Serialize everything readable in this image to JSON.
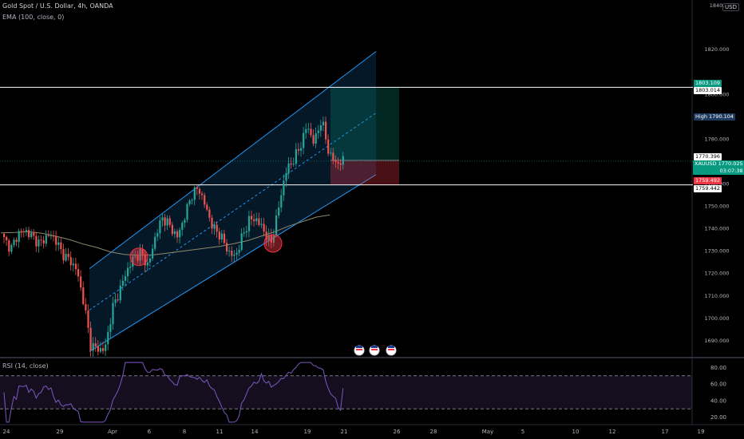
{
  "header": {
    "symbol_line": "Gold Spot / U.S. Dollar, 4h, OANDA",
    "ema_label": "EMA (100, close, 0)",
    "currency": "USD"
  },
  "rsi": {
    "label": "RSI (14, close)",
    "ticks": [
      80.0,
      60.0,
      40.0,
      20.0
    ],
    "band_upper": 70,
    "band_lower": 30,
    "last_value": 55,
    "line_color": "#7e57c2"
  },
  "price_axis": {
    "ticks": [
      "1820.000",
      "1800.000",
      "1780.000",
      "1760.000",
      "1750.000",
      "1740.000",
      "1730.000",
      "1720.000",
      "1710.000",
      "1700.000",
      "1690.000"
    ],
    "top_cut_label": "1840.000",
    "ymin": 1683,
    "ymax": 1842
  },
  "price_tags": {
    "tp": {
      "value": "1803.109",
      "bg": "#089981",
      "fg": "#ffffff"
    },
    "hline_top": {
      "value": "1803.014",
      "bg": "#ffffff",
      "fg": "#000000"
    },
    "high": {
      "label": "High",
      "value": "1790.104",
      "bg": "#1e3a5f",
      "fg": "#ffffff"
    },
    "ref": {
      "value": "1770.396",
      "bg": "#ffffff",
      "fg": "#000000"
    },
    "last": {
      "symbol": "XAUUSD",
      "value": "1770.025",
      "countdown": "03:07:38",
      "bg": "#089981",
      "fg": "#ffffff"
    },
    "sl": {
      "value": "1759.492",
      "bg": "#f23645",
      "fg": "#ffffff"
    },
    "hline_bottom": {
      "value": "1759.442",
      "bg": "#ffffff",
      "fg": "#000000"
    }
  },
  "time_axis": {
    "labels": [
      "24",
      "29",
      "Apr",
      "6",
      "8",
      "11",
      "14",
      "19",
      "21",
      "26",
      "28",
      "May",
      "5",
      "10",
      "12",
      "17",
      "19"
    ]
  },
  "colors": {
    "up": "#26a69a",
    "down": "#ef5350",
    "channel": "#2196f3",
    "ema": "#8f8a6a"
  },
  "chart_data": {
    "type": "candlestick",
    "symbol": "XAUUSD",
    "timeframe": "4h",
    "ylim": [
      1683,
      1842
    ],
    "horizontal_levels": [
      1803.014,
      1759.442
    ],
    "channel": {
      "lower_start": [
        0,
        1685
      ],
      "lower_end": [
        140,
        1764
      ],
      "upper_start": [
        0,
        1722
      ],
      "upper_end": [
        140,
        1819
      ]
    },
    "position": {
      "entry": 1770.396,
      "take_profit": 1803.109,
      "stop_loss": 1759.492
    },
    "ema100": [
      1738,
      1738.2,
      1738.5,
      1737.8,
      1736.5,
      1735,
      1733,
      1731.5,
      1729.5,
      1728.4,
      1728,
      1728.1,
      1728.8,
      1729.6,
      1730.4,
      1731.2,
      1732,
      1733.2,
      1734.5,
      1736.5,
      1738.5,
      1741,
      1743,
      1745,
      1746
    ],
    "close_path": [
      1735,
      1731,
      1738,
      1739,
      1736,
      1733,
      1737,
      1736,
      1729,
      1726,
      1722,
      1708,
      1688,
      1686,
      1686,
      1704,
      1712,
      1721,
      1727,
      1729,
      1723,
      1737,
      1745,
      1741,
      1736,
      1745,
      1755,
      1758,
      1749,
      1740,
      1737,
      1730,
      1727,
      1736,
      1744,
      1744,
      1739,
      1733,
      1748,
      1765,
      1770,
      1776,
      1786,
      1778,
      1789,
      1774,
      1769,
      1770
    ],
    "close_path_range": [
      0,
      137
    ],
    "highlighted_swing_lows": [
      1728,
      1734
    ]
  }
}
